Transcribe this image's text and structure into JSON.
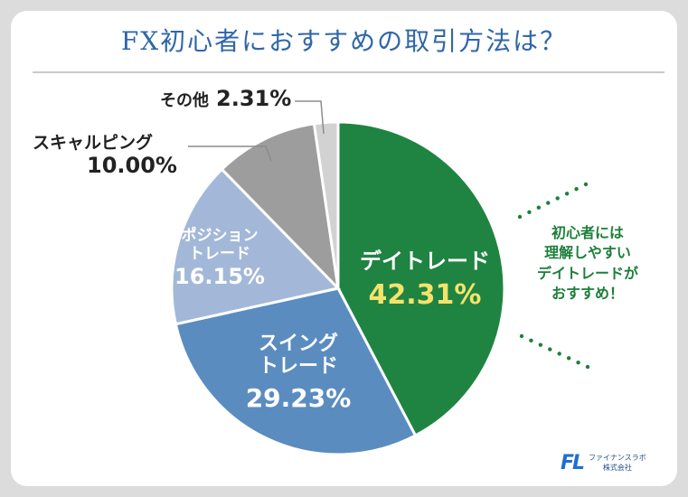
{
  "page_title": "FX初心者におすすめの取引方法は？",
  "chart_data": {
    "type": "pie",
    "title": "FX初心者におすすめの取引方法は？",
    "unit": "%",
    "slices": [
      {
        "label": "デイトレード",
        "value": 42.31,
        "display": "42.31%",
        "color": "#1f8441"
      },
      {
        "label": "スイングトレード",
        "value": 29.23,
        "display": "29.23%",
        "color": "#5b8cc0"
      },
      {
        "label": "ポジショントレード",
        "value": 16.15,
        "display": "16.15%",
        "color": "#a3b8d8"
      },
      {
        "label": "スキャルピング",
        "value": 10.0,
        "display": "10.00%",
        "color": "#9d9d9d"
      },
      {
        "label": "その他",
        "value": 2.31,
        "display": "2.31%",
        "color": "#d2d2d2"
      }
    ]
  },
  "labels": {
    "day_trade_name": "デイトレード",
    "day_trade_value": "42.31%",
    "swing_name_1": "スイング",
    "swing_name_2": "トレード",
    "swing_value": "29.23%",
    "position_name_1": "ポジション",
    "position_name_2": "トレード",
    "position_value": "16.15%",
    "scalping_name": "スキャルピング",
    "scalping_value": "10.00%",
    "other_name": "その他",
    "other_value": "2.31%"
  },
  "callout": {
    "line1": "初心者には",
    "line2": "理解しやすい",
    "line3": "デイトレードが",
    "line4": "おすすめ！"
  },
  "logo": {
    "mark": "FL",
    "name": "ファイナンスラボ",
    "company": "株式会社"
  },
  "colors": {
    "title": "#2f66a8",
    "highlight": "#f4e36b",
    "callout": "#1d7f3a",
    "dots": "#1d7f3a"
  }
}
